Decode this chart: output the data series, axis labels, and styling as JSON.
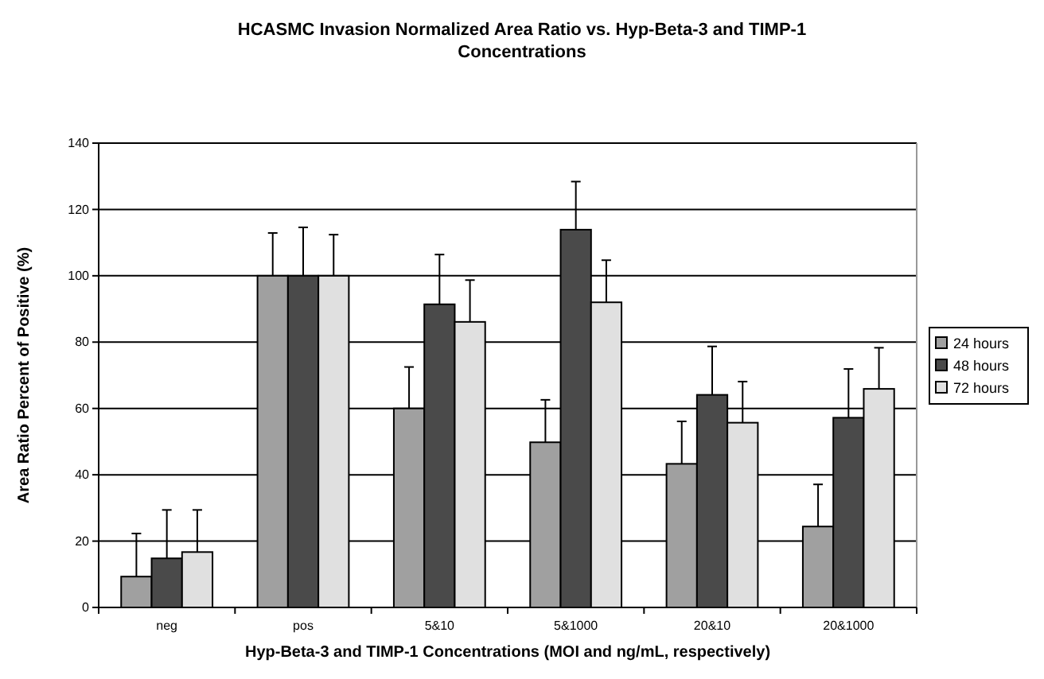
{
  "chart_data": {
    "type": "bar",
    "title": "HCASMC Invasion Normalized Area Ratio vs. Hyp-Beta-3 and TIMP-1 Concentrations",
    "xlabel": "Hyp-Beta-3 and TIMP-1 Concentrations (MOI and ng/mL, respectively)",
    "ylabel": "Area Ratio Percent of Positive (%)",
    "categories": [
      "neg",
      "pos",
      "5&10",
      "5&1000",
      "20&10",
      "20&1000"
    ],
    "series": [
      {
        "name": "24 hours",
        "color": "#a0a0a0",
        "values": [
          9.3,
          100,
          60,
          49.8,
          43.3,
          24.4
        ],
        "errors": [
          [
            9.3,
            22.3
          ],
          [
            100,
            112.9
          ],
          [
            60,
            72.5
          ],
          [
            49.8,
            62.6
          ],
          [
            43.3,
            56.1
          ],
          [
            24.4,
            37.1
          ]
        ]
      },
      {
        "name": "48 hours",
        "color": "#4a4a4a",
        "values": [
          14.8,
          100,
          91.4,
          113.9,
          64.1,
          57.2
        ],
        "errors": [
          [
            14.8,
            29.4
          ],
          [
            100,
            114.6
          ],
          [
            91.4,
            106.4
          ],
          [
            113.9,
            128.4
          ],
          [
            64.1,
            78.7
          ],
          [
            57.2,
            71.9
          ]
        ]
      },
      {
        "name": "72 hours",
        "color": "#e0e0e0",
        "values": [
          16.7,
          100,
          86.1,
          92,
          55.7,
          65.9
        ],
        "errors": [
          [
            16.7,
            29.4
          ],
          [
            100,
            112.4
          ],
          [
            86.1,
            98.7
          ],
          [
            92,
            104.7
          ],
          [
            55.7,
            68.1
          ],
          [
            65.9,
            78.3
          ]
        ]
      }
    ],
    "ylim": [
      0,
      140
    ],
    "yticks": [
      0,
      20,
      40,
      60,
      80,
      100,
      120,
      140
    ],
    "grid": "y",
    "legend": "right"
  }
}
